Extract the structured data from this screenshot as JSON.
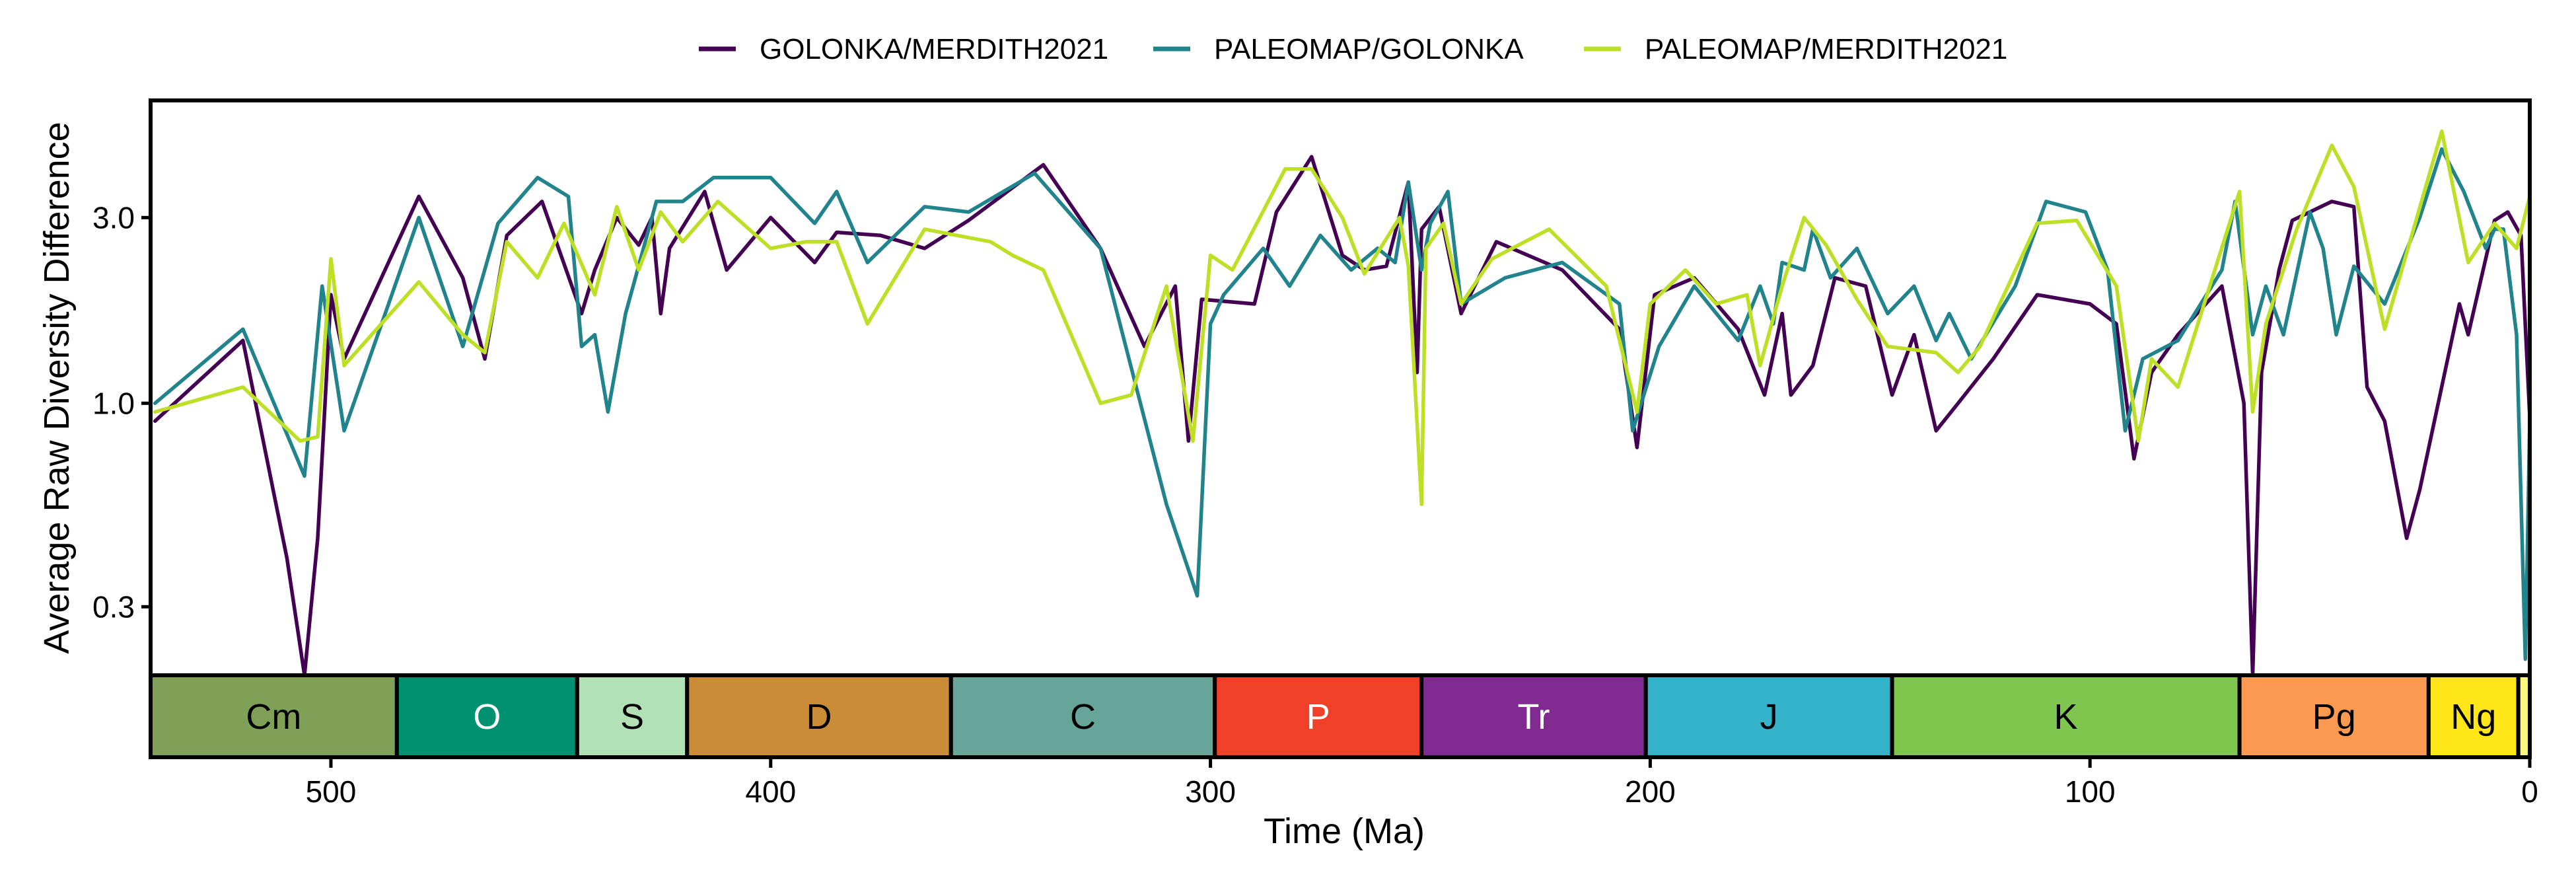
{
  "chart_data": {
    "type": "line",
    "xlabel": "Time (Ma)",
    "ylabel": "Average Raw Diversity Difference",
    "x_reversed": true,
    "xlim": [
      541,
      0
    ],
    "y_scale": "log",
    "ylim": [
      0.2,
      6.0
    ],
    "x_ticks": [
      500,
      400,
      300,
      200,
      100,
      0
    ],
    "x_tick_labels": [
      "500",
      "400",
      "300",
      "200",
      "100",
      "0"
    ],
    "y_ticks": [
      0.3,
      1.0,
      3.0
    ],
    "y_tick_labels": [
      "0.3",
      "1.0",
      "3.0"
    ],
    "grid": false,
    "legend_position": "top",
    "series": [
      {
        "name": "GOLONKA/MERDITH2021",
        "color": "#440154",
        "points": [
          [
            540,
            0.9
          ],
          [
            520,
            1.45
          ],
          [
            510,
            0.4
          ],
          [
            506,
            0.2
          ],
          [
            503,
            0.45
          ],
          [
            500,
            1.9
          ],
          [
            497,
            1.3
          ],
          [
            480,
            3.4
          ],
          [
            470,
            2.1
          ],
          [
            465,
            1.3
          ],
          [
            460,
            2.7
          ],
          [
            452,
            3.3
          ],
          [
            443,
            1.7
          ],
          [
            440,
            2.2
          ],
          [
            435,
            3.0
          ],
          [
            430,
            2.55
          ],
          [
            427,
            3.0
          ],
          [
            425,
            1.7
          ],
          [
            423,
            2.5
          ],
          [
            415,
            3.5
          ],
          [
            410,
            2.2
          ],
          [
            400,
            3.0
          ],
          [
            390,
            2.3
          ],
          [
            385,
            2.75
          ],
          [
            375,
            2.7
          ],
          [
            365,
            2.5
          ],
          [
            355,
            2.95
          ],
          [
            338,
            4.1
          ],
          [
            325,
            2.5
          ],
          [
            315,
            1.4
          ],
          [
            308,
            2.0
          ],
          [
            305,
            0.8
          ],
          [
            302,
            1.85
          ],
          [
            290,
            1.8
          ],
          [
            285,
            3.1
          ],
          [
            277,
            4.3
          ],
          [
            270,
            2.4
          ],
          [
            265,
            2.2
          ],
          [
            260,
            2.25
          ],
          [
            255,
            3.7
          ],
          [
            253,
            1.2
          ],
          [
            252,
            2.8
          ],
          [
            248,
            3.2
          ],
          [
            243,
            1.7
          ],
          [
            235,
            2.6
          ],
          [
            220,
            2.2
          ],
          [
            207,
            1.55
          ],
          [
            203,
            0.77
          ],
          [
            199,
            1.9
          ],
          [
            190,
            2.1
          ],
          [
            180,
            1.55
          ],
          [
            174,
            1.05
          ],
          [
            170,
            1.7
          ],
          [
            168,
            1.05
          ],
          [
            163,
            1.25
          ],
          [
            158,
            2.1
          ],
          [
            151,
            2.0
          ],
          [
            145,
            1.05
          ],
          [
            140,
            1.5
          ],
          [
            135,
            0.85
          ],
          [
            130,
            1.0
          ],
          [
            122,
            1.3
          ],
          [
            112,
            1.9
          ],
          [
            100,
            1.8
          ],
          [
            94,
            1.6
          ],
          [
            90,
            0.72
          ],
          [
            86,
            1.2
          ],
          [
            80,
            1.5
          ],
          [
            70,
            2.0
          ],
          [
            65,
            1.0
          ],
          [
            63,
            0.2
          ],
          [
            61,
            1.2
          ],
          [
            57,
            2.2
          ],
          [
            54,
            2.95
          ],
          [
            45,
            3.3
          ],
          [
            40,
            3.2
          ],
          [
            37,
            1.1
          ],
          [
            33,
            0.9
          ],
          [
            28,
            0.45
          ],
          [
            25,
            0.6
          ],
          [
            16,
            1.8
          ],
          [
            14,
            1.5
          ],
          [
            8,
            2.95
          ],
          [
            5,
            3.1
          ],
          [
            2,
            2.7
          ],
          [
            0,
            0.92
          ]
        ]
      },
      {
        "name": "PALEOMAP/GOLONKA",
        "color": "#21838c",
        "points": [
          [
            540,
            1.0
          ],
          [
            520,
            1.55
          ],
          [
            506,
            0.65
          ],
          [
            502,
            2.0
          ],
          [
            497,
            0.85
          ],
          [
            480,
            3.0
          ],
          [
            470,
            1.4
          ],
          [
            462,
            2.9
          ],
          [
            453,
            3.8
          ],
          [
            446,
            3.4
          ],
          [
            443,
            1.4
          ],
          [
            440,
            1.5
          ],
          [
            437,
            0.95
          ],
          [
            433,
            1.7
          ],
          [
            426,
            3.3
          ],
          [
            420,
            3.3
          ],
          [
            413,
            3.8
          ],
          [
            400,
            3.8
          ],
          [
            390,
            2.9
          ],
          [
            385,
            3.5
          ],
          [
            378,
            2.3
          ],
          [
            365,
            3.2
          ],
          [
            355,
            3.1
          ],
          [
            340,
            3.9
          ],
          [
            325,
            2.5
          ],
          [
            310,
            0.55
          ],
          [
            303,
            0.32
          ],
          [
            300,
            1.6
          ],
          [
            297,
            1.9
          ],
          [
            288,
            2.5
          ],
          [
            282,
            2.0
          ],
          [
            275,
            2.7
          ],
          [
            268,
            2.2
          ],
          [
            262,
            2.5
          ],
          [
            258,
            2.3
          ],
          [
            255,
            3.7
          ],
          [
            252,
            2.2
          ],
          [
            250,
            2.9
          ],
          [
            246,
            3.5
          ],
          [
            243,
            1.8
          ],
          [
            233,
            2.1
          ],
          [
            220,
            2.3
          ],
          [
            207,
            1.8
          ],
          [
            204,
            0.85
          ],
          [
            198,
            1.4
          ],
          [
            190,
            2.0
          ],
          [
            180,
            1.45
          ],
          [
            175,
            2.0
          ],
          [
            172,
            1.6
          ],
          [
            170,
            2.3
          ],
          [
            165,
            2.2
          ],
          [
            163,
            2.8
          ],
          [
            159,
            2.1
          ],
          [
            153,
            2.5
          ],
          [
            146,
            1.7
          ],
          [
            140,
            2.0
          ],
          [
            135,
            1.45
          ],
          [
            132,
            1.7
          ],
          [
            127,
            1.3
          ],
          [
            117,
            2.0
          ],
          [
            110,
            3.3
          ],
          [
            101,
            3.1
          ],
          [
            96,
            2.2
          ],
          [
            92,
            0.85
          ],
          [
            88,
            1.3
          ],
          [
            80,
            1.45
          ],
          [
            70,
            2.2
          ],
          [
            67,
            3.3
          ],
          [
            63,
            1.5
          ],
          [
            60,
            2.0
          ],
          [
            56,
            1.5
          ],
          [
            50,
            3.1
          ],
          [
            47,
            2.5
          ],
          [
            44,
            1.5
          ],
          [
            40,
            2.25
          ],
          [
            33,
            1.8
          ],
          [
            25,
            3.0
          ],
          [
            20,
            4.5
          ],
          [
            15,
            3.5
          ],
          [
            10,
            2.5
          ],
          [
            8,
            2.8
          ],
          [
            6,
            2.8
          ],
          [
            3,
            1.5
          ],
          [
            1,
            0.22
          ],
          [
            0,
            0.9
          ]
        ]
      },
      {
        "name": "PALEOMAP/MERDITH2021",
        "color": "#bddf26",
        "points": [
          [
            540,
            0.95
          ],
          [
            520,
            1.1
          ],
          [
            507,
            0.8
          ],
          [
            503,
            0.82
          ],
          [
            500,
            2.35
          ],
          [
            497,
            1.25
          ],
          [
            480,
            2.05
          ],
          [
            470,
            1.5
          ],
          [
            465,
            1.35
          ],
          [
            460,
            2.6
          ],
          [
            453,
            2.1
          ],
          [
            447,
            2.9
          ],
          [
            440,
            1.9
          ],
          [
            435,
            3.2
          ],
          [
            430,
            2.2
          ],
          [
            425,
            3.1
          ],
          [
            420,
            2.6
          ],
          [
            412,
            3.3
          ],
          [
            400,
            2.5
          ],
          [
            392,
            2.6
          ],
          [
            385,
            2.6
          ],
          [
            378,
            1.6
          ],
          [
            365,
            2.8
          ],
          [
            350,
            2.6
          ],
          [
            345,
            2.4
          ],
          [
            338,
            2.2
          ],
          [
            325,
            1.0
          ],
          [
            318,
            1.05
          ],
          [
            310,
            2.0
          ],
          [
            304,
            0.8
          ],
          [
            300,
            2.4
          ],
          [
            295,
            2.2
          ],
          [
            283,
            4.0
          ],
          [
            277,
            4.0
          ],
          [
            270,
            3.0
          ],
          [
            265,
            2.15
          ],
          [
            257,
            3.0
          ],
          [
            255,
            2.25
          ],
          [
            252,
            0.55
          ],
          [
            251,
            2.5
          ],
          [
            247,
            2.9
          ],
          [
            243,
            1.8
          ],
          [
            236,
            2.35
          ],
          [
            223,
            2.8
          ],
          [
            210,
            2.0
          ],
          [
            203,
            0.95
          ],
          [
            200,
            1.8
          ],
          [
            192,
            2.2
          ],
          [
            185,
            1.8
          ],
          [
            178,
            1.9
          ],
          [
            175,
            1.25
          ],
          [
            170,
            2.0
          ],
          [
            165,
            3.0
          ],
          [
            160,
            2.55
          ],
          [
            153,
            1.85
          ],
          [
            146,
            1.4
          ],
          [
            135,
            1.35
          ],
          [
            130,
            1.2
          ],
          [
            125,
            1.4
          ],
          [
            112,
            2.9
          ],
          [
            103,
            2.95
          ],
          [
            94,
            2.0
          ],
          [
            89,
            0.8
          ],
          [
            86,
            1.3
          ],
          [
            80,
            1.1
          ],
          [
            66,
            3.5
          ],
          [
            63,
            0.95
          ],
          [
            60,
            1.6
          ],
          [
            53,
            2.8
          ],
          [
            45,
            4.6
          ],
          [
            40,
            3.6
          ],
          [
            33,
            1.55
          ],
          [
            20,
            5.0
          ],
          [
            14,
            2.3
          ],
          [
            8,
            2.9
          ],
          [
            3,
            2.5
          ],
          [
            0,
            3.4
          ]
        ]
      }
    ],
    "periods": [
      {
        "label": "Cm",
        "start": 541,
        "end": 485,
        "color": "#7fa056",
        "text_color": "#000000"
      },
      {
        "label": "O",
        "start": 485,
        "end": 444,
        "color": "#009270",
        "text_color": "#ffffff"
      },
      {
        "label": "S",
        "start": 444,
        "end": 419,
        "color": "#b3e1b6",
        "text_color": "#000000"
      },
      {
        "label": "D",
        "start": 419,
        "end": 359,
        "color": "#cb8c37",
        "text_color": "#000000"
      },
      {
        "label": "C",
        "start": 359,
        "end": 299,
        "color": "#67a599",
        "text_color": "#000000"
      },
      {
        "label": "P",
        "start": 299,
        "end": 252,
        "color": "#f04028",
        "text_color": "#ffffff"
      },
      {
        "label": "Tr",
        "start": 252,
        "end": 201,
        "color": "#812b92",
        "text_color": "#ffffff"
      },
      {
        "label": "J",
        "start": 201,
        "end": 145,
        "color": "#34b2c9",
        "text_color": "#000000"
      },
      {
        "label": "K",
        "start": 145,
        "end": 66,
        "color": "#7fc64e",
        "text_color": "#000000"
      },
      {
        "label": "Pg",
        "start": 66,
        "end": 23,
        "color": "#fd9a52",
        "text_color": "#000000"
      },
      {
        "label": "Ng",
        "start": 23,
        "end": 2.6,
        "color": "#ffe619",
        "text_color": "#000000"
      },
      {
        "label": "",
        "start": 2.6,
        "end": 0,
        "color": "#f9f97f",
        "text_color": "#000000"
      }
    ]
  }
}
